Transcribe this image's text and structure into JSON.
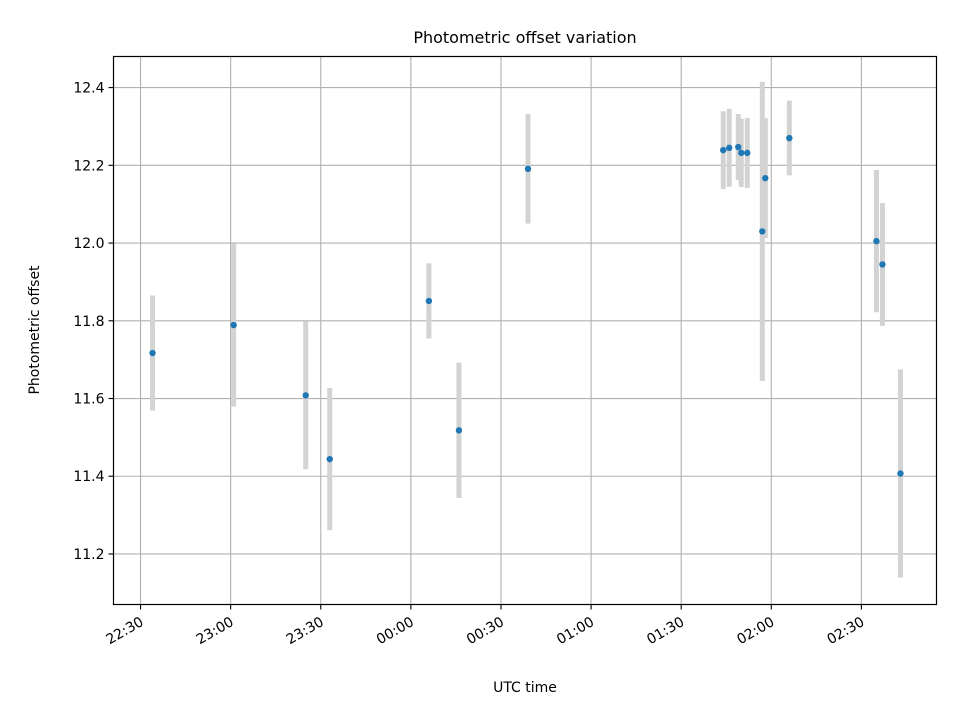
{
  "chart_data": {
    "type": "scatter",
    "title": "Photometric offset variation",
    "xlabel": "UTC time",
    "ylabel": "Photometric offset",
    "x_unit": "UTC time of night (HH:MM, crossing midnight)",
    "xlim": [
      "22:21",
      "02:55"
    ],
    "ylim": [
      11.07,
      12.48
    ],
    "x_ticks": [
      "22:30",
      "23:00",
      "23:30",
      "00:00",
      "00:30",
      "01:00",
      "01:30",
      "02:00",
      "02:30"
    ],
    "y_ticks": [
      11.2,
      11.4,
      11.6,
      11.8,
      12.0,
      12.2,
      12.4
    ],
    "grid": true,
    "colors": {
      "point": "#1f77b4",
      "errorbar": "#d3d3d3",
      "grid": "#b0b0b0"
    },
    "series": [
      {
        "points": [
          {
            "x": "22:34",
            "y": 11.717,
            "err": 0.148
          },
          {
            "x": "23:01",
            "y": 11.789,
            "err": 0.21
          },
          {
            "x": "23:25",
            "y": 11.608,
            "err": 0.19
          },
          {
            "x": "23:33",
            "y": 11.444,
            "err": 0.183
          },
          {
            "x": "00:06",
            "y": 11.851,
            "err": 0.097
          },
          {
            "x": "00:16",
            "y": 11.518,
            "err": 0.174
          },
          {
            "x": "00:39",
            "y": 12.191,
            "err": 0.141
          },
          {
            "x": "01:44",
            "y": 12.239,
            "err": 0.1
          },
          {
            "x": "01:46",
            "y": 12.245,
            "err": 0.1
          },
          {
            "x": "01:49",
            "y": 12.247,
            "err": 0.085
          },
          {
            "x": "01:50",
            "y": 12.232,
            "err": 0.088
          },
          {
            "x": "01:52",
            "y": 12.232,
            "err": 0.09
          },
          {
            "x": "01:57",
            "y": 12.03,
            "err": 0.385
          },
          {
            "x": "01:58",
            "y": 12.167,
            "err": 0.154
          },
          {
            "x": "02:06",
            "y": 12.27,
            "err": 0.096
          },
          {
            "x": "02:35",
            "y": 12.005,
            "err": 0.183
          },
          {
            "x": "02:37",
            "y": 11.945,
            "err": 0.158
          },
          {
            "x": "02:43",
            "y": 11.407,
            "err": 0.268
          }
        ]
      }
    ]
  }
}
